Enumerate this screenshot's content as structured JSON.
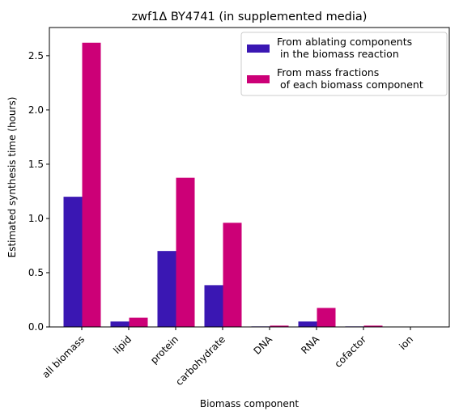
{
  "chart_data": {
    "type": "bar",
    "title": "zwf1Δ BY4741 (in supplemented media)",
    "xlabel": "Biomass component",
    "ylabel": "Estimated synthesis time (hours)",
    "categories": [
      "all biomass",
      "lipid",
      "protein",
      "carbohydrate",
      "DNA",
      "RNA",
      "cofactor",
      "ion"
    ],
    "series": [
      {
        "name_lines": [
          "From ablating components",
          " in the biomass reaction"
        ],
        "color": "#3a17b3",
        "values": [
          1.2,
          0.05,
          0.7,
          0.385,
          0.005,
          0.05,
          0.005,
          0.002
        ]
      },
      {
        "name_lines": [
          "From mass fractions",
          " of each biomass component"
        ],
        "color": "#cc0077",
        "values": [
          2.62,
          0.085,
          1.375,
          0.96,
          0.012,
          0.175,
          0.012,
          0.002
        ]
      }
    ],
    "ylim": [
      0,
      2.76
    ],
    "yticks": [
      0.0,
      0.5,
      1.0,
      1.5,
      2.0,
      2.5
    ],
    "ytick_labels": [
      "0.0",
      "0.5",
      "1.0",
      "1.5",
      "2.0",
      "2.5"
    ],
    "grid": false,
    "legend_position": "top-right"
  }
}
